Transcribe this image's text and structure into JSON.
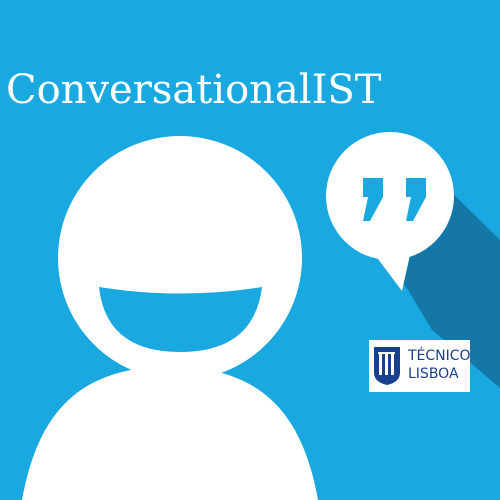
{
  "app": {
    "title": "ConversationalIST"
  },
  "badge": {
    "line1": "TÉCNICO",
    "line2": "LISBOA",
    "logo_icon": "ist-shield-icon"
  },
  "icons": {
    "person": "smiling-person-icon",
    "speech": "speech-bubble-quote-icon"
  },
  "colors": {
    "background": "#1aa8e0",
    "shadow": "#1577a8",
    "foreground": "#ffffff",
    "quote_marks": "#1aa8e0",
    "badge_text": "#1a3f8f"
  }
}
